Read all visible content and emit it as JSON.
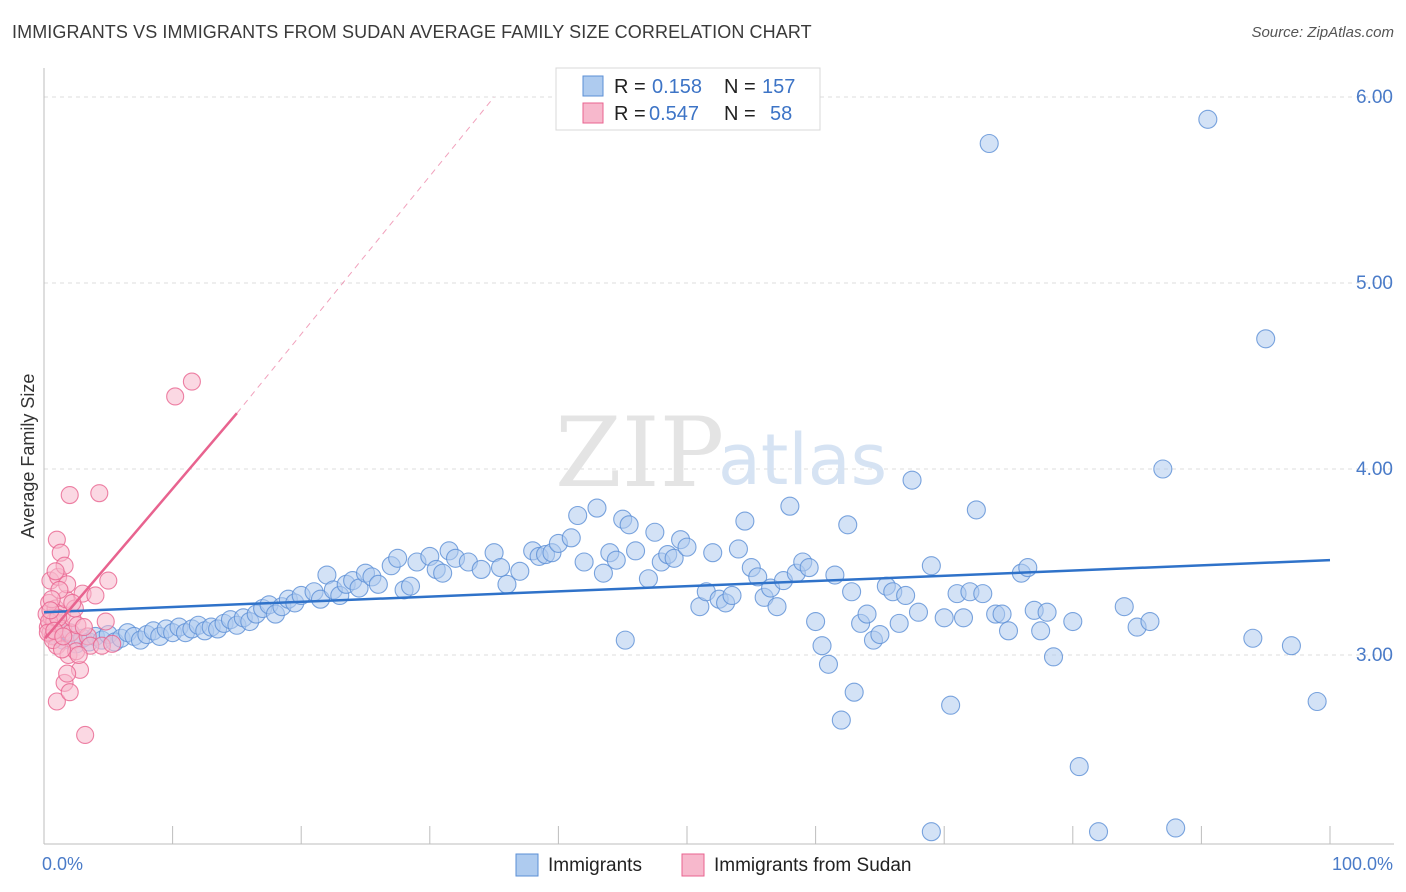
{
  "title": "IMMIGRANTS VS IMMIGRANTS FROM SUDAN AVERAGE FAMILY SIZE CORRELATION CHART",
  "source": "Source: ZipAtlas.com",
  "watermark": {
    "zip": "ZIP",
    "atlas": "atlas"
  },
  "colors": {
    "blue": "#5b8fd6",
    "blue_fill": "#aecbef",
    "pink": "#e8638f",
    "pink_fill": "#f7b8cc",
    "trend_blue": "#2f72c9",
    "trend_pink": "#e8638f"
  },
  "legend_top": {
    "rows": [
      {
        "r_label": "R =",
        "r_value": "0.158",
        "n_label": "N =",
        "n_value": "157"
      },
      {
        "r_label": "R =",
        "r_value": "0.547",
        "n_label": "N =",
        "n_value": "58"
      }
    ]
  },
  "legend_bottom": [
    "Immigrants",
    "Immigrants from Sudan"
  ],
  "chart_data": {
    "type": "scatter",
    "title": "IMMIGRANTS VS IMMIGRANTS FROM SUDAN AVERAGE FAMILY SIZE CORRELATION CHART",
    "xlabel": "",
    "ylabel": "Average Family Size",
    "x_tick_labels": [
      "0.0%",
      "100.0%"
    ],
    "y_tick_labels": [
      "3.00",
      "4.00",
      "5.00",
      "6.00"
    ],
    "xlim": [
      0,
      100
    ],
    "ylim": [
      2.0,
      6.1
    ],
    "grid": true,
    "legend_placement": "top-center",
    "series": [
      {
        "name": "Immigrants",
        "trend": {
          "x": [
            0,
            100
          ],
          "y": [
            3.23,
            3.51
          ]
        },
        "points": [
          [
            1,
            3.1
          ],
          [
            1.5,
            3.08
          ],
          [
            2,
            3.12
          ],
          [
            2.5,
            3.06
          ],
          [
            3,
            3.09
          ],
          [
            3.5,
            3.07
          ],
          [
            4,
            3.1
          ],
          [
            4.5,
            3.08
          ],
          [
            5,
            3.11
          ],
          [
            5.5,
            3.07
          ],
          [
            6,
            3.09
          ],
          [
            6.5,
            3.12
          ],
          [
            7,
            3.1
          ],
          [
            7.5,
            3.08
          ],
          [
            8,
            3.11
          ],
          [
            8.5,
            3.13
          ],
          [
            9,
            3.1
          ],
          [
            9.5,
            3.14
          ],
          [
            10,
            3.12
          ],
          [
            10.5,
            3.15
          ],
          [
            11,
            3.12
          ],
          [
            11.5,
            3.14
          ],
          [
            12,
            3.16
          ],
          [
            12.5,
            3.13
          ],
          [
            13,
            3.15
          ],
          [
            13.5,
            3.14
          ],
          [
            14,
            3.17
          ],
          [
            14.5,
            3.19
          ],
          [
            15,
            3.16
          ],
          [
            15.5,
            3.2
          ],
          [
            16,
            3.18
          ],
          [
            16.5,
            3.22
          ],
          [
            17,
            3.25
          ],
          [
            17.5,
            3.27
          ],
          [
            18,
            3.22
          ],
          [
            18.5,
            3.26
          ],
          [
            19,
            3.3
          ],
          [
            19.5,
            3.28
          ],
          [
            20,
            3.32
          ],
          [
            21,
            3.34
          ],
          [
            21.5,
            3.3
          ],
          [
            22,
            3.43
          ],
          [
            22.5,
            3.35
          ],
          [
            23,
            3.32
          ],
          [
            23.5,
            3.38
          ],
          [
            24,
            3.4
          ],
          [
            24.5,
            3.36
          ],
          [
            25,
            3.44
          ],
          [
            25.5,
            3.42
          ],
          [
            26,
            3.38
          ],
          [
            27,
            3.48
          ],
          [
            27.5,
            3.52
          ],
          [
            28,
            3.35
          ],
          [
            28.5,
            3.37
          ],
          [
            29,
            3.5
          ],
          [
            30,
            3.53
          ],
          [
            30.5,
            3.46
          ],
          [
            31,
            3.44
          ],
          [
            31.5,
            3.56
          ],
          [
            32,
            3.52
          ],
          [
            33,
            3.5
          ],
          [
            34,
            3.46
          ],
          [
            35,
            3.55
          ],
          [
            35.5,
            3.47
          ],
          [
            36,
            3.38
          ],
          [
            37,
            3.45
          ],
          [
            38,
            3.56
          ],
          [
            38.5,
            3.53
          ],
          [
            39,
            3.54
          ],
          [
            39.5,
            3.55
          ],
          [
            40,
            3.6
          ],
          [
            41,
            3.63
          ],
          [
            41.5,
            3.75
          ],
          [
            42,
            3.5
          ],
          [
            43,
            3.79
          ],
          [
            43.5,
            3.44
          ],
          [
            44,
            3.55
          ],
          [
            44.5,
            3.51
          ],
          [
            45,
            3.73
          ],
          [
            45.5,
            3.7
          ],
          [
            46,
            3.56
          ],
          [
            47,
            3.41
          ],
          [
            47.5,
            3.66
          ],
          [
            48,
            3.5
          ],
          [
            48.5,
            3.54
          ],
          [
            49,
            3.52
          ],
          [
            49.5,
            3.62
          ],
          [
            50,
            3.58
          ],
          [
            51,
            3.26
          ],
          [
            51.5,
            3.34
          ],
          [
            52,
            3.55
          ],
          [
            52.5,
            3.3
          ],
          [
            53,
            3.28
          ],
          [
            53.5,
            3.32
          ],
          [
            54,
            3.57
          ],
          [
            54.5,
            3.72
          ],
          [
            55,
            3.47
          ],
          [
            55.5,
            3.42
          ],
          [
            56,
            3.31
          ],
          [
            56.5,
            3.36
          ],
          [
            57,
            3.26
          ],
          [
            57.5,
            3.4
          ],
          [
            58,
            3.8
          ],
          [
            58.5,
            3.44
          ],
          [
            59,
            3.5
          ],
          [
            59.5,
            3.47
          ],
          [
            60,
            3.18
          ],
          [
            60.5,
            3.05
          ],
          [
            61,
            2.95
          ],
          [
            61.5,
            3.43
          ],
          [
            62,
            2.65
          ],
          [
            62.5,
            3.7
          ],
          [
            63,
            2.8
          ],
          [
            63.5,
            3.17
          ],
          [
            64,
            3.22
          ],
          [
            64.5,
            3.08
          ],
          [
            65,
            3.11
          ],
          [
            65.5,
            3.37
          ],
          [
            66,
            3.34
          ],
          [
            66.5,
            3.17
          ],
          [
            67,
            3.32
          ],
          [
            67.5,
            3.94
          ],
          [
            68,
            3.23
          ],
          [
            69,
            3.48
          ],
          [
            70,
            3.2
          ],
          [
            70.5,
            2.73
          ],
          [
            71,
            3.33
          ],
          [
            71.5,
            3.2
          ],
          [
            72,
            3.34
          ],
          [
            72.5,
            3.78
          ],
          [
            73,
            3.33
          ],
          [
            73.5,
            5.75
          ],
          [
            74,
            3.22
          ],
          [
            74.5,
            3.22
          ],
          [
            75,
            3.13
          ],
          [
            76,
            3.44
          ],
          [
            76.5,
            3.47
          ],
          [
            77,
            3.24
          ],
          [
            77.5,
            3.13
          ],
          [
            78,
            3.23
          ],
          [
            78.5,
            2.99
          ],
          [
            80,
            3.18
          ],
          [
            80.5,
            2.4
          ],
          [
            82,
            2.05
          ],
          [
            84,
            3.26
          ],
          [
            85,
            3.15
          ],
          [
            86,
            3.18
          ],
          [
            87,
            4.0
          ],
          [
            88,
            2.07
          ],
          [
            90.5,
            5.88
          ],
          [
            94,
            3.09
          ],
          [
            95,
            4.7
          ],
          [
            97,
            3.05
          ],
          [
            99,
            2.75
          ],
          [
            69,
            2.05
          ],
          [
            62.8,
            3.34
          ],
          [
            45.2,
            3.08
          ]
        ]
      },
      {
        "name": "Immigrants from Sudan",
        "trend": {
          "x": [
            0.1,
            15
          ],
          "y": [
            3.09,
            4.3
          ]
        },
        "trend_extension": {
          "x": [
            15,
            35
          ],
          "y": [
            4.3,
            6.0
          ]
        },
        "points": [
          [
            0.2,
            3.22
          ],
          [
            0.3,
            3.15
          ],
          [
            0.4,
            3.28
          ],
          [
            0.5,
            3.12
          ],
          [
            0.5,
            3.4
          ],
          [
            0.6,
            3.2
          ],
          [
            0.7,
            3.1
          ],
          [
            0.8,
            3.18
          ],
          [
            0.9,
            3.25
          ],
          [
            1.0,
            3.62
          ],
          [
            1.0,
            3.05
          ],
          [
            1.1,
            3.42
          ],
          [
            1.2,
            3.17
          ],
          [
            1.3,
            3.55
          ],
          [
            1.4,
            3.22
          ],
          [
            1.5,
            3.14
          ],
          [
            1.6,
            3.48
          ],
          [
            1.7,
            3.3
          ],
          [
            1.8,
            3.38
          ],
          [
            1.9,
            3.0
          ],
          [
            2.0,
            3.86
          ],
          [
            2.1,
            3.12
          ],
          [
            2.2,
            3.2
          ],
          [
            2.3,
            3.08
          ],
          [
            2.4,
            3.25
          ],
          [
            2.5,
            3.02
          ],
          [
            2.6,
            3.16
          ],
          [
            2.8,
            2.92
          ],
          [
            3.0,
            3.33
          ],
          [
            3.2,
            2.57
          ],
          [
            3.4,
            3.1
          ],
          [
            3.6,
            3.05
          ],
          [
            4.0,
            3.32
          ],
          [
            4.3,
            3.87
          ],
          [
            4.5,
            3.05
          ],
          [
            5.0,
            3.4
          ],
          [
            5.3,
            3.06
          ],
          [
            1.0,
            2.75
          ],
          [
            1.6,
            2.85
          ],
          [
            2.0,
            2.8
          ],
          [
            1.8,
            2.9
          ],
          [
            1.2,
            3.35
          ],
          [
            0.9,
            3.45
          ],
          [
            0.6,
            3.3
          ],
          [
            0.4,
            3.18
          ],
          [
            0.3,
            3.12
          ],
          [
            0.7,
            3.08
          ],
          [
            1.4,
            3.03
          ],
          [
            1.1,
            3.2
          ],
          [
            2.7,
            3.0
          ],
          [
            3.1,
            3.15
          ],
          [
            2.2,
            3.28
          ],
          [
            0.8,
            3.13
          ],
          [
            1.5,
            3.1
          ],
          [
            11.5,
            4.47
          ],
          [
            10.2,
            4.39
          ],
          [
            4.8,
            3.18
          ],
          [
            0.5,
            3.24
          ]
        ]
      }
    ]
  }
}
